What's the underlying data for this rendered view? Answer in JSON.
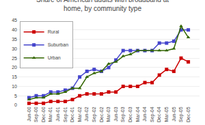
{
  "chart_data": {
    "type": "line",
    "title": "Share of American adults with broadband at\nhome, by community type",
    "categories": [
      "Jun-00",
      "Sep-00",
      "Dec-00",
      "Mar-01",
      "Jun-01",
      "Sep-01",
      "Dec-01",
      "Mar-02",
      "Jun-02",
      "Sep-02",
      "Dec-02",
      "Mar-03",
      "Jun-03",
      "Sep-03",
      "Dec-03",
      "Mar-04",
      "Jun-04",
      "Sep-04",
      "Dec-04",
      "Mar-05",
      "Jun-05",
      "Sep-05",
      "Dec-05"
    ],
    "series": [
      {
        "name": "Rural",
        "color": "#cc0000",
        "marker": "square",
        "values": [
          1,
          1,
          1,
          2,
          2,
          2,
          3,
          5,
          6,
          6,
          6,
          7,
          7,
          10,
          10,
          10,
          12,
          12,
          16,
          19,
          18,
          25,
          23
        ]
      },
      {
        "name": "Suburban",
        "color": "#4444cc",
        "marker": "square",
        "values": [
          4,
          5,
          5,
          7,
          7,
          8,
          9,
          15,
          18,
          19,
          18,
          20,
          24,
          29,
          29,
          29,
          29,
          29,
          33,
          33,
          34,
          40,
          40
        ]
      },
      {
        "name": "Urban",
        "color": "#336600",
        "marker": "triangle-up",
        "values": [
          3,
          4,
          4,
          6,
          6,
          7,
          9,
          9,
          15,
          17,
          18,
          22,
          23,
          26,
          27,
          29,
          29,
          29,
          29,
          29,
          30,
          42,
          36
        ]
      }
    ],
    "ylim": [
      0,
      45
    ],
    "yticks": [
      0,
      5,
      10,
      15,
      20,
      25,
      30,
      35,
      40,
      45
    ],
    "grid": true,
    "legend": "upper left"
  }
}
